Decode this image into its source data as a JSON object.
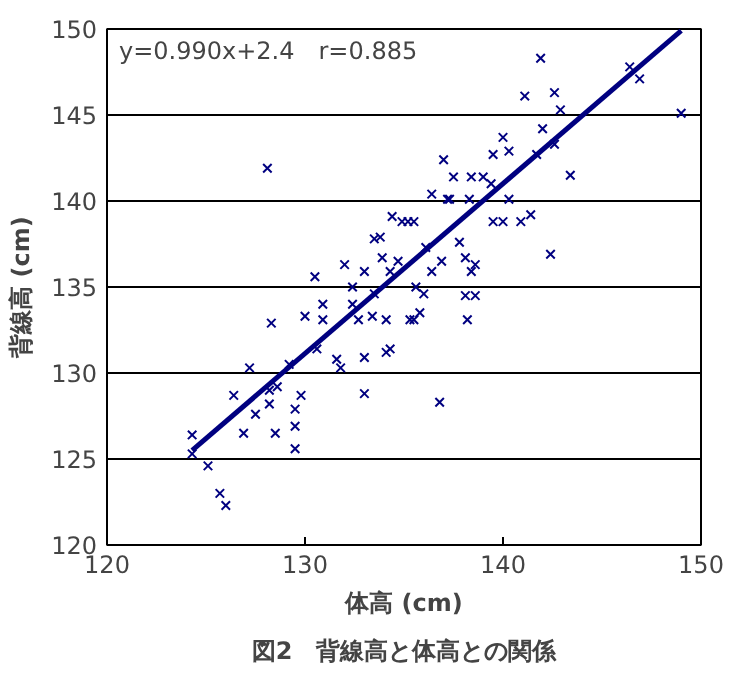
{
  "chart_data": {
    "type": "scatter",
    "xlabel": "体高 (cm)",
    "ylabel": "背線高 (cm)",
    "annotations": [
      "y=0.990x+2.4　r=0.885",
      "図2　背線高と体高との関係"
    ],
    "xlim": [
      120,
      150
    ],
    "ylim": [
      120,
      150
    ],
    "xticks": [
      120,
      130,
      140,
      150
    ],
    "yticks": [
      120,
      125,
      130,
      135,
      140,
      145,
      150
    ],
    "grid": "y",
    "marker": "cross",
    "series": [
      {
        "color": "#000080",
        "x": [
          124.3,
          124.3,
          125.1,
          125.7,
          126,
          126.9,
          126.4,
          127.2,
          128.3,
          128.5,
          129.5,
          129.5,
          129.5,
          129.8,
          129.2,
          128.2,
          127.5,
          130,
          130.9,
          130.9,
          131.6,
          131.8,
          133,
          133,
          134.1,
          134.3,
          135.5,
          134.1,
          133.4,
          132.7,
          132.4,
          130.6,
          128.6,
          128.2,
          135.3,
          135.8,
          138.2,
          138.1,
          138.6,
          137,
          137.5,
          138.4,
          139.4,
          140,
          140.3,
          141.1,
          142.6,
          142.9,
          142,
          141.7,
          142.6,
          136.4,
          137.3,
          138.3,
          140.3,
          139.5,
          140,
          140.9,
          141.4,
          135.5,
          134.9,
          136.1,
          136.9,
          137.8,
          138.1,
          138.6,
          138.4,
          142.4,
          135.6,
          136,
          136.4,
          134.7,
          139,
          139.5,
          137.2,
          128.1,
          130.5,
          132,
          133,
          133.5,
          134.4,
          135.2,
          133.9,
          134.3,
          133.8,
          132.4,
          133.5,
          136.8,
          143.4,
          141.9,
          146.4,
          146.9,
          149
        ],
        "values": [
          126.4,
          125.3,
          124.6,
          123,
          122.3,
          126.5,
          128.7,
          130.3,
          132.9,
          126.5,
          125.6,
          126.9,
          127.9,
          128.7,
          130.5,
          128.2,
          127.6,
          133.3,
          133.1,
          134,
          130.8,
          130.3,
          130.9,
          128.8,
          131.2,
          131.4,
          133.1,
          133.1,
          133.3,
          133.1,
          134,
          131.4,
          129.2,
          129,
          133.1,
          133.5,
          133.1,
          134.5,
          134.5,
          142.4,
          141.4,
          141.4,
          141,
          143.7,
          142.9,
          146.1,
          146.3,
          145.3,
          144.2,
          142.7,
          143.3,
          140.4,
          140.1,
          140.1,
          140.1,
          138.8,
          138.8,
          138.8,
          139.2,
          138.8,
          138.8,
          137.3,
          136.5,
          137.6,
          136.7,
          136.3,
          135.9,
          136.9,
          135,
          134.6,
          135.9,
          136.5,
          141.4,
          142.7,
          140.1,
          141.9,
          135.6,
          136.3,
          135.9,
          137.8,
          139.1,
          138.8,
          136.7,
          135.9,
          137.9,
          135,
          134.6,
          128.3,
          141.5,
          148.3,
          147.8,
          147.1,
          145.1
        ]
      },
      {
        "type": "line",
        "color": "#000080",
        "marker": "none",
        "x": [
          124.3,
          149
        ],
        "values": [
          125.5,
          149.9
        ]
      }
    ]
  }
}
